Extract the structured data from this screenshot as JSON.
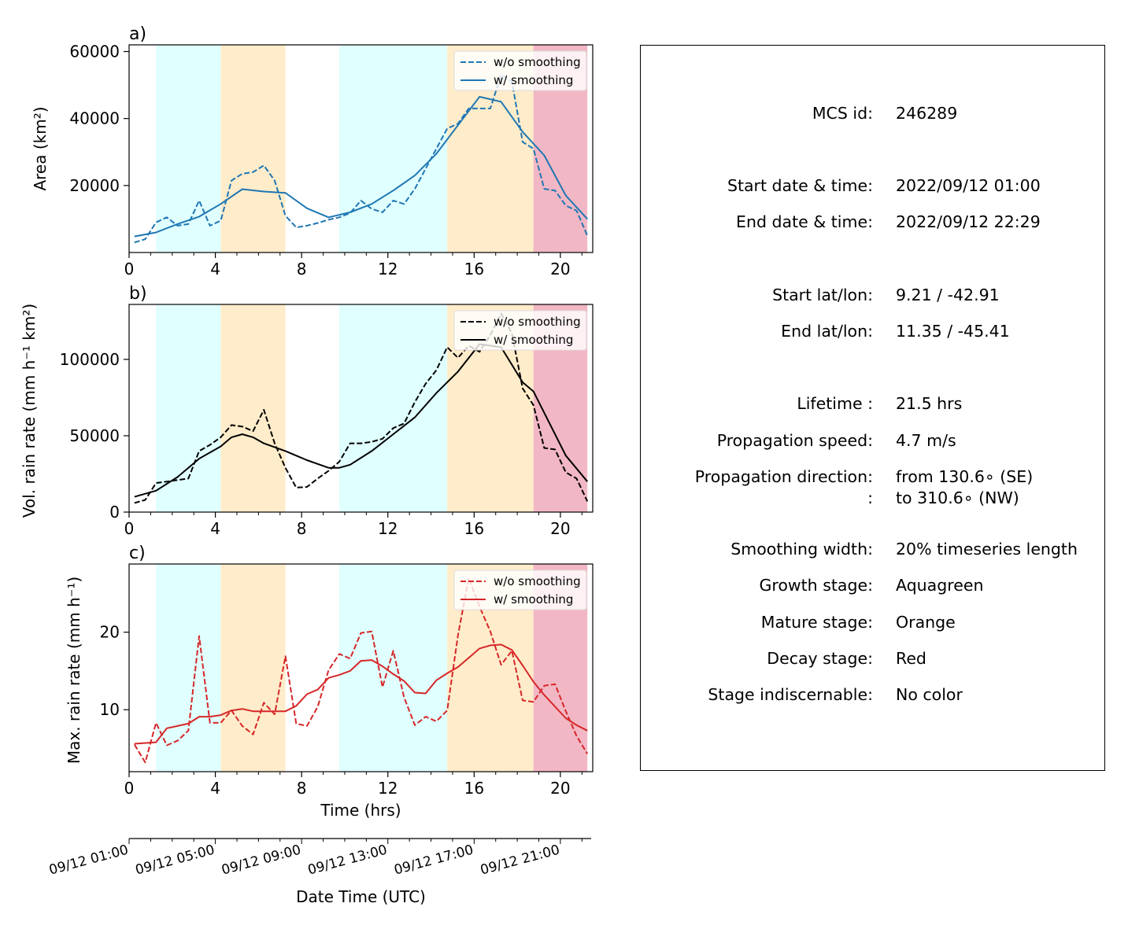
{
  "chart_data": [
    {
      "panel_label": "a)",
      "type": "line",
      "ylabel": "Area  (km²)",
      "yticks": [
        20000,
        40000,
        60000
      ],
      "ylim": [
        0,
        62000
      ],
      "xlim": [
        0,
        21.5
      ],
      "xticks": [
        0,
        4,
        8,
        12,
        16,
        20
      ],
      "legend": "top-right",
      "color": "#1f77b4",
      "series": [
        {
          "name": "w/o smoothing",
          "style": "dashed",
          "x": [
            0.25,
            0.75,
            1.25,
            1.75,
            2.25,
            2.75,
            3.25,
            3.75,
            4.25,
            4.75,
            5.25,
            5.75,
            6.25,
            6.75,
            7.25,
            7.75,
            8.25,
            8.75,
            9.25,
            9.75,
            10.25,
            10.75,
            11.25,
            11.75,
            12.25,
            12.75,
            13.25,
            13.75,
            14.25,
            14.75,
            15.25,
            15.75,
            16.25,
            16.75,
            17.25,
            17.75,
            18.25,
            18.75,
            19.25,
            19.75,
            20.25,
            20.75,
            21.25
          ],
          "y": [
            3000,
            4000,
            9000,
            10500,
            8000,
            8500,
            15500,
            8000,
            9500,
            21500,
            23500,
            24000,
            26000,
            21500,
            11000,
            7500,
            8000,
            8800,
            9800,
            10500,
            11800,
            15500,
            13000,
            12000,
            15500,
            14500,
            19000,
            25000,
            31000,
            37000,
            38500,
            43000,
            43000,
            43000,
            53000,
            51000,
            33000,
            31000,
            19000,
            18500,
            14000,
            12500,
            5000
          ]
        },
        {
          "name": "w/ smoothing",
          "style": "solid",
          "x": [
            0.25,
            1.25,
            2.25,
            3.25,
            4.25,
            5.25,
            6.25,
            7.25,
            8.25,
            9.25,
            10.25,
            11.25,
            12.25,
            13.25,
            14.25,
            15.25,
            16.25,
            17.25,
            18.25,
            19.25,
            20.25,
            21.25
          ],
          "y": [
            4800,
            6000,
            8500,
            10700,
            14500,
            18900,
            18200,
            17800,
            13200,
            10500,
            12000,
            14500,
            18500,
            23000,
            29500,
            38000,
            46500,
            45000,
            36000,
            29000,
            17000,
            10000
          ]
        }
      ]
    },
    {
      "panel_label": "b)",
      "type": "line",
      "ylabel": "Vol. rain rate (mm h⁻¹ km²)",
      "yticks": [
        0,
        50000,
        100000
      ],
      "ylim": [
        0,
        136000
      ],
      "xlim": [
        0,
        21.5
      ],
      "xticks": [
        0,
        4,
        8,
        12,
        16,
        20
      ],
      "legend": "top-right",
      "color": "#000000",
      "series": [
        {
          "name": "w/o smoothing",
          "style": "dashed",
          "x": [
            0.25,
            0.75,
            1.25,
            1.75,
            2.25,
            2.75,
            3.25,
            3.75,
            4.25,
            4.75,
            5.25,
            5.75,
            6.25,
            6.75,
            7.25,
            7.75,
            8.25,
            8.75,
            9.25,
            9.75,
            10.25,
            10.75,
            11.25,
            11.75,
            12.25,
            12.75,
            13.25,
            13.75,
            14.25,
            14.75,
            15.25,
            15.75,
            16.25,
            16.75,
            17.25,
            17.75,
            18.25,
            18.75,
            19.25,
            19.75,
            20.25,
            20.75,
            21.25
          ],
          "y": [
            6000,
            8000,
            19000,
            20000,
            21000,
            22000,
            40000,
            44000,
            49000,
            57000,
            56000,
            53000,
            67000,
            45000,
            29000,
            16000,
            16500,
            22000,
            27000,
            33000,
            45000,
            45000,
            46000,
            48000,
            55000,
            58000,
            72000,
            84000,
            93000,
            108000,
            101000,
            109000,
            105000,
            116000,
            130000,
            117000,
            81000,
            70000,
            42000,
            41000,
            26000,
            22000,
            7000
          ]
        },
        {
          "name": "w/ smoothing",
          "style": "solid",
          "x": [
            0.25,
            1.25,
            2.25,
            3.25,
            4.25,
            4.75,
            5.25,
            5.75,
            6.25,
            7.25,
            8.25,
            9.25,
            9.75,
            10.25,
            11.25,
            12.25,
            13.25,
            14.25,
            15.25,
            16.25,
            17.25,
            18.25,
            18.75,
            19.25,
            20.25,
            21.25
          ],
          "y": [
            10000,
            14000,
            23000,
            35000,
            43000,
            49000,
            51000,
            49000,
            45000,
            40000,
            34000,
            29000,
            29000,
            31000,
            40000,
            51000,
            62000,
            78000,
            92000,
            110000,
            108000,
            85000,
            79000,
            65000,
            37000,
            20000
          ]
        }
      ]
    },
    {
      "panel_label": "c)",
      "type": "line",
      "ylabel": "Max. rain rate  (mm h⁻¹)",
      "xlabel": "Time (hrs)",
      "yticks": [
        10,
        20
      ],
      "ylim": [
        2,
        28.8
      ],
      "xlim": [
        0,
        21.5
      ],
      "xticks": [
        0,
        4,
        8,
        12,
        16,
        20
      ],
      "legend": "top-right",
      "color": "#d62728",
      "series": [
        {
          "name": "w/o smoothing",
          "style": "dashed",
          "x": [
            0.25,
            0.75,
            1.25,
            1.75,
            2.25,
            2.75,
            3.25,
            3.75,
            4.25,
            4.75,
            5.25,
            5.75,
            6.25,
            6.75,
            7.25,
            7.75,
            8.25,
            8.75,
            9.25,
            9.75,
            10.25,
            10.75,
            11.25,
            11.75,
            12.25,
            12.75,
            13.25,
            13.75,
            14.25,
            14.75,
            15.25,
            15.75,
            16.25,
            16.75,
            17.25,
            17.75,
            18.25,
            18.75,
            19.25,
            19.75,
            20.25,
            20.75,
            21.25
          ],
          "y": [
            5.5,
            3.2,
            8.3,
            5.4,
            6.0,
            7.3,
            19.5,
            8.3,
            8.3,
            9.9,
            7.9,
            6.8,
            10.9,
            9.4,
            16.9,
            8.2,
            7.9,
            10.4,
            15.1,
            17.2,
            16.6,
            19.9,
            20.1,
            12.9,
            17.6,
            11.6,
            8.0,
            9.1,
            8.5,
            9.9,
            19.6,
            27.0,
            23.3,
            20.1,
            15.8,
            17.6,
            11.2,
            11.0,
            13.1,
            13.3,
            9.8,
            6.6,
            4.3
          ]
        },
        {
          "name": "w/ smoothing",
          "style": "solid",
          "x": [
            0.25,
            1.25,
            1.75,
            2.25,
            2.75,
            3.25,
            3.75,
            4.25,
            4.75,
            5.25,
            5.75,
            6.25,
            6.75,
            7.25,
            7.75,
            8.25,
            8.75,
            9.25,
            9.75,
            10.25,
            10.75,
            11.25,
            11.75,
            12.25,
            12.75,
            13.25,
            13.75,
            14.25,
            14.75,
            15.25,
            15.75,
            16.25,
            16.75,
            17.25,
            17.75,
            18.25,
            18.75,
            19.25,
            19.75,
            20.25,
            20.75,
            21.25
          ],
          "y": [
            5.6,
            5.8,
            7.6,
            7.9,
            8.2,
            9.1,
            9.1,
            9.3,
            9.9,
            10.1,
            9.8,
            9.8,
            9.8,
            9.8,
            10.5,
            12.0,
            12.6,
            14.1,
            14.5,
            15.0,
            16.3,
            16.4,
            15.6,
            14.6,
            13.7,
            12.2,
            12.1,
            13.8,
            14.7,
            15.5,
            16.7,
            17.9,
            18.3,
            18.4,
            17.7,
            15.7,
            13.6,
            11.9,
            10.4,
            8.9,
            8.0,
            7.3
          ]
        }
      ]
    }
  ],
  "stage_bands": [
    {
      "start": 1.25,
      "end": 4.25,
      "color": "#e0ffff",
      "stage": "growth"
    },
    {
      "start": 4.25,
      "end": 7.25,
      "color": "#ffecca",
      "stage": "mature"
    },
    {
      "start": 9.75,
      "end": 14.75,
      "color": "#e0ffff",
      "stage": "growth"
    },
    {
      "start": 14.75,
      "end": 18.75,
      "color": "#ffecca",
      "stage": "mature"
    },
    {
      "start": 18.75,
      "end": 21.25,
      "color": "#f2b7c4",
      "stage": "decay"
    }
  ],
  "date_axis": {
    "xlabel": "Date Time (UTC)",
    "ticks": [
      {
        "hour": 0,
        "label": "09/12 01:00"
      },
      {
        "hour": 4,
        "label": "09/12 05:00"
      },
      {
        "hour": 8,
        "label": "09/12 09:00"
      },
      {
        "hour": 12,
        "label": "09/12 13:00"
      },
      {
        "hour": 16,
        "label": "09/12 17:00"
      },
      {
        "hour": 20,
        "label": "09/12 21:00"
      }
    ]
  },
  "info": {
    "rows": [
      {
        "label": "MCS id:",
        "value": "246289"
      },
      {
        "label": "Start date & time:",
        "value": "2022/09/12 01:00"
      },
      {
        "label": "End date & time:",
        "value": "2022/09/12 22:29"
      },
      {
        "label": "Start lat/lon:",
        "value": "9.21 / -42.91"
      },
      {
        "label": "End lat/lon:",
        "value": "11.35 / -45.41"
      },
      {
        "label": "Lifetime :",
        "value": "21.5 hrs"
      },
      {
        "label": "Propagation speed:",
        "value": "4.7 m/s"
      },
      {
        "label": "Propagation direction:",
        "value": "from 130.6∘ (SE)"
      },
      {
        "label": ":",
        "value": "to   310.6∘ (NW)"
      },
      {
        "label": "Smoothing width:",
        "value": "20% timeseries length"
      },
      {
        "label": "Growth stage:",
        "value": "Aquagreen"
      },
      {
        "label": "Mature stage:",
        "value": "Orange"
      },
      {
        "label": "Decay stage:",
        "value": "Red"
      },
      {
        "label": "Stage indiscernable:",
        "value": "No color"
      }
    ]
  }
}
